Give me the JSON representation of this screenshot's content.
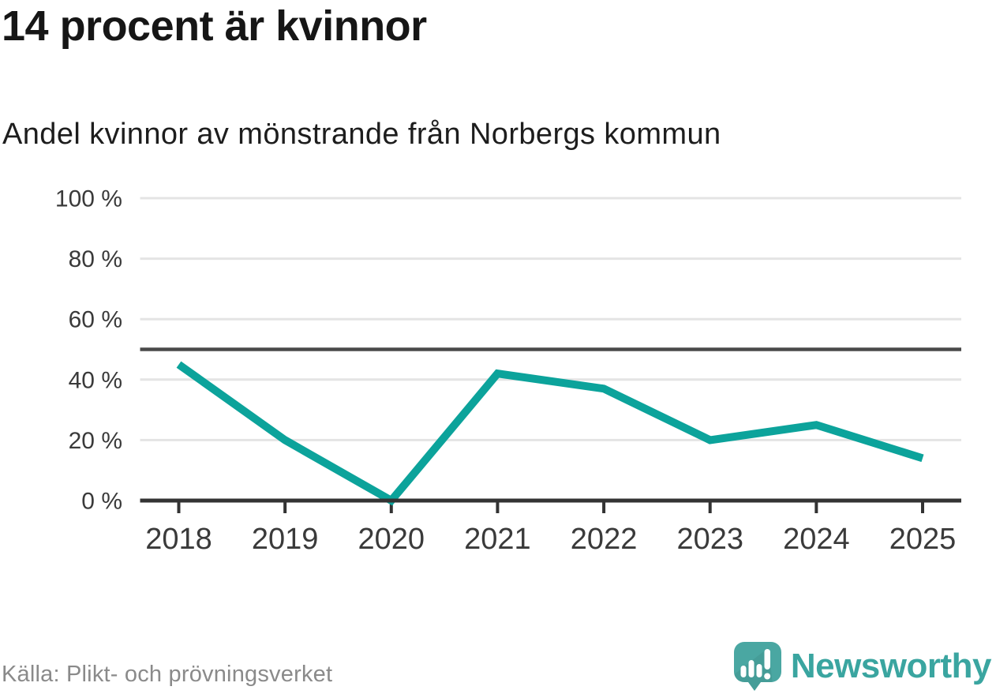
{
  "header": {
    "title": "14 procent är kvinnor",
    "subtitle": "Andel kvinnor av mönstrande från Norbergs kommun"
  },
  "footer": {
    "source_label": "Källa: Plikt- och prövningsverket",
    "brand_name": "Newsworthy",
    "brand_icon": "newsworthy-speech-bubble-bar-chart-icon"
  },
  "chart_data": {
    "type": "line",
    "title": "14 procent är kvinnor",
    "subtitle": "Andel kvinnor av mönstrande från Norbergs kommun",
    "categories": [
      "2018",
      "2019",
      "2020",
      "2021",
      "2022",
      "2023",
      "2024",
      "2025"
    ],
    "values": [
      45,
      20,
      0,
      42,
      37,
      20,
      25,
      14
    ],
    "unit": "%",
    "xlabel": "",
    "ylabel": "",
    "ylim": [
      0,
      100
    ],
    "yticks": [
      0,
      20,
      40,
      60,
      80,
      100
    ],
    "ytick_labels": [
      "0 %",
      "20 %",
      "40 %",
      "60 %",
      "80 %",
      "100 %"
    ],
    "reference_line_y": 50,
    "grid": true,
    "legend": "none",
    "colors": {
      "line": "#0ca39b",
      "grid": "#e4e4e4",
      "reference_line": "#4a4a4a",
      "axis": "#333333",
      "tick_labels": "#3a3a3a",
      "brand_teal": "#3aa5a0",
      "brand_icon_teal": "#4aa7a2"
    }
  }
}
